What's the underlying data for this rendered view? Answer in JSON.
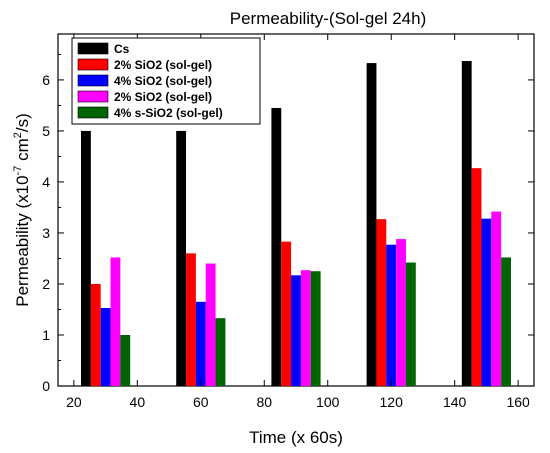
{
  "chart_data": {
    "type": "bar",
    "title": "Permeability-(Sol-gel 24h)",
    "xlabel": "Time (x 60s)",
    "ylabel_main": "Permeability (x10",
    "ylabel_exp1": "-7",
    "ylabel_mid": " cm",
    "ylabel_exp2": "2",
    "ylabel_end": "/s)",
    "x_ticks": [
      "20",
      "40",
      "60",
      "80",
      "100",
      "120",
      "140",
      "160"
    ],
    "y_ticks": [
      "0",
      "1",
      "2",
      "3",
      "4",
      "5",
      "6"
    ],
    "ylim": [
      0,
      6.9
    ],
    "xlim": [
      15,
      165
    ],
    "groups": [
      30,
      60,
      90,
      120,
      150
    ],
    "series": [
      {
        "name": "Cs",
        "color": "#000000",
        "values": [
          5.0,
          5.0,
          5.45,
          6.33,
          6.37
        ]
      },
      {
        "name": "2% SiO2 (sol-gel)",
        "color": "#ff0000",
        "values": [
          2.0,
          2.6,
          2.83,
          3.27,
          4.27
        ]
      },
      {
        "name": "4% SiO2 (sol-gel)",
        "color": "#0000ff",
        "values": [
          1.53,
          1.65,
          2.17,
          2.77,
          3.28
        ]
      },
      {
        "name": "2% SiO2 (sol-gel)",
        "color": "#ff00ff",
        "values": [
          2.52,
          2.4,
          2.27,
          2.88,
          3.42
        ]
      },
      {
        "name": "4% s-SiO2 (sol-gel)",
        "color": "#006400",
        "values": [
          1.0,
          1.33,
          2.25,
          2.42,
          2.52
        ]
      }
    ],
    "legend_position": "top-left",
    "grid": false
  }
}
